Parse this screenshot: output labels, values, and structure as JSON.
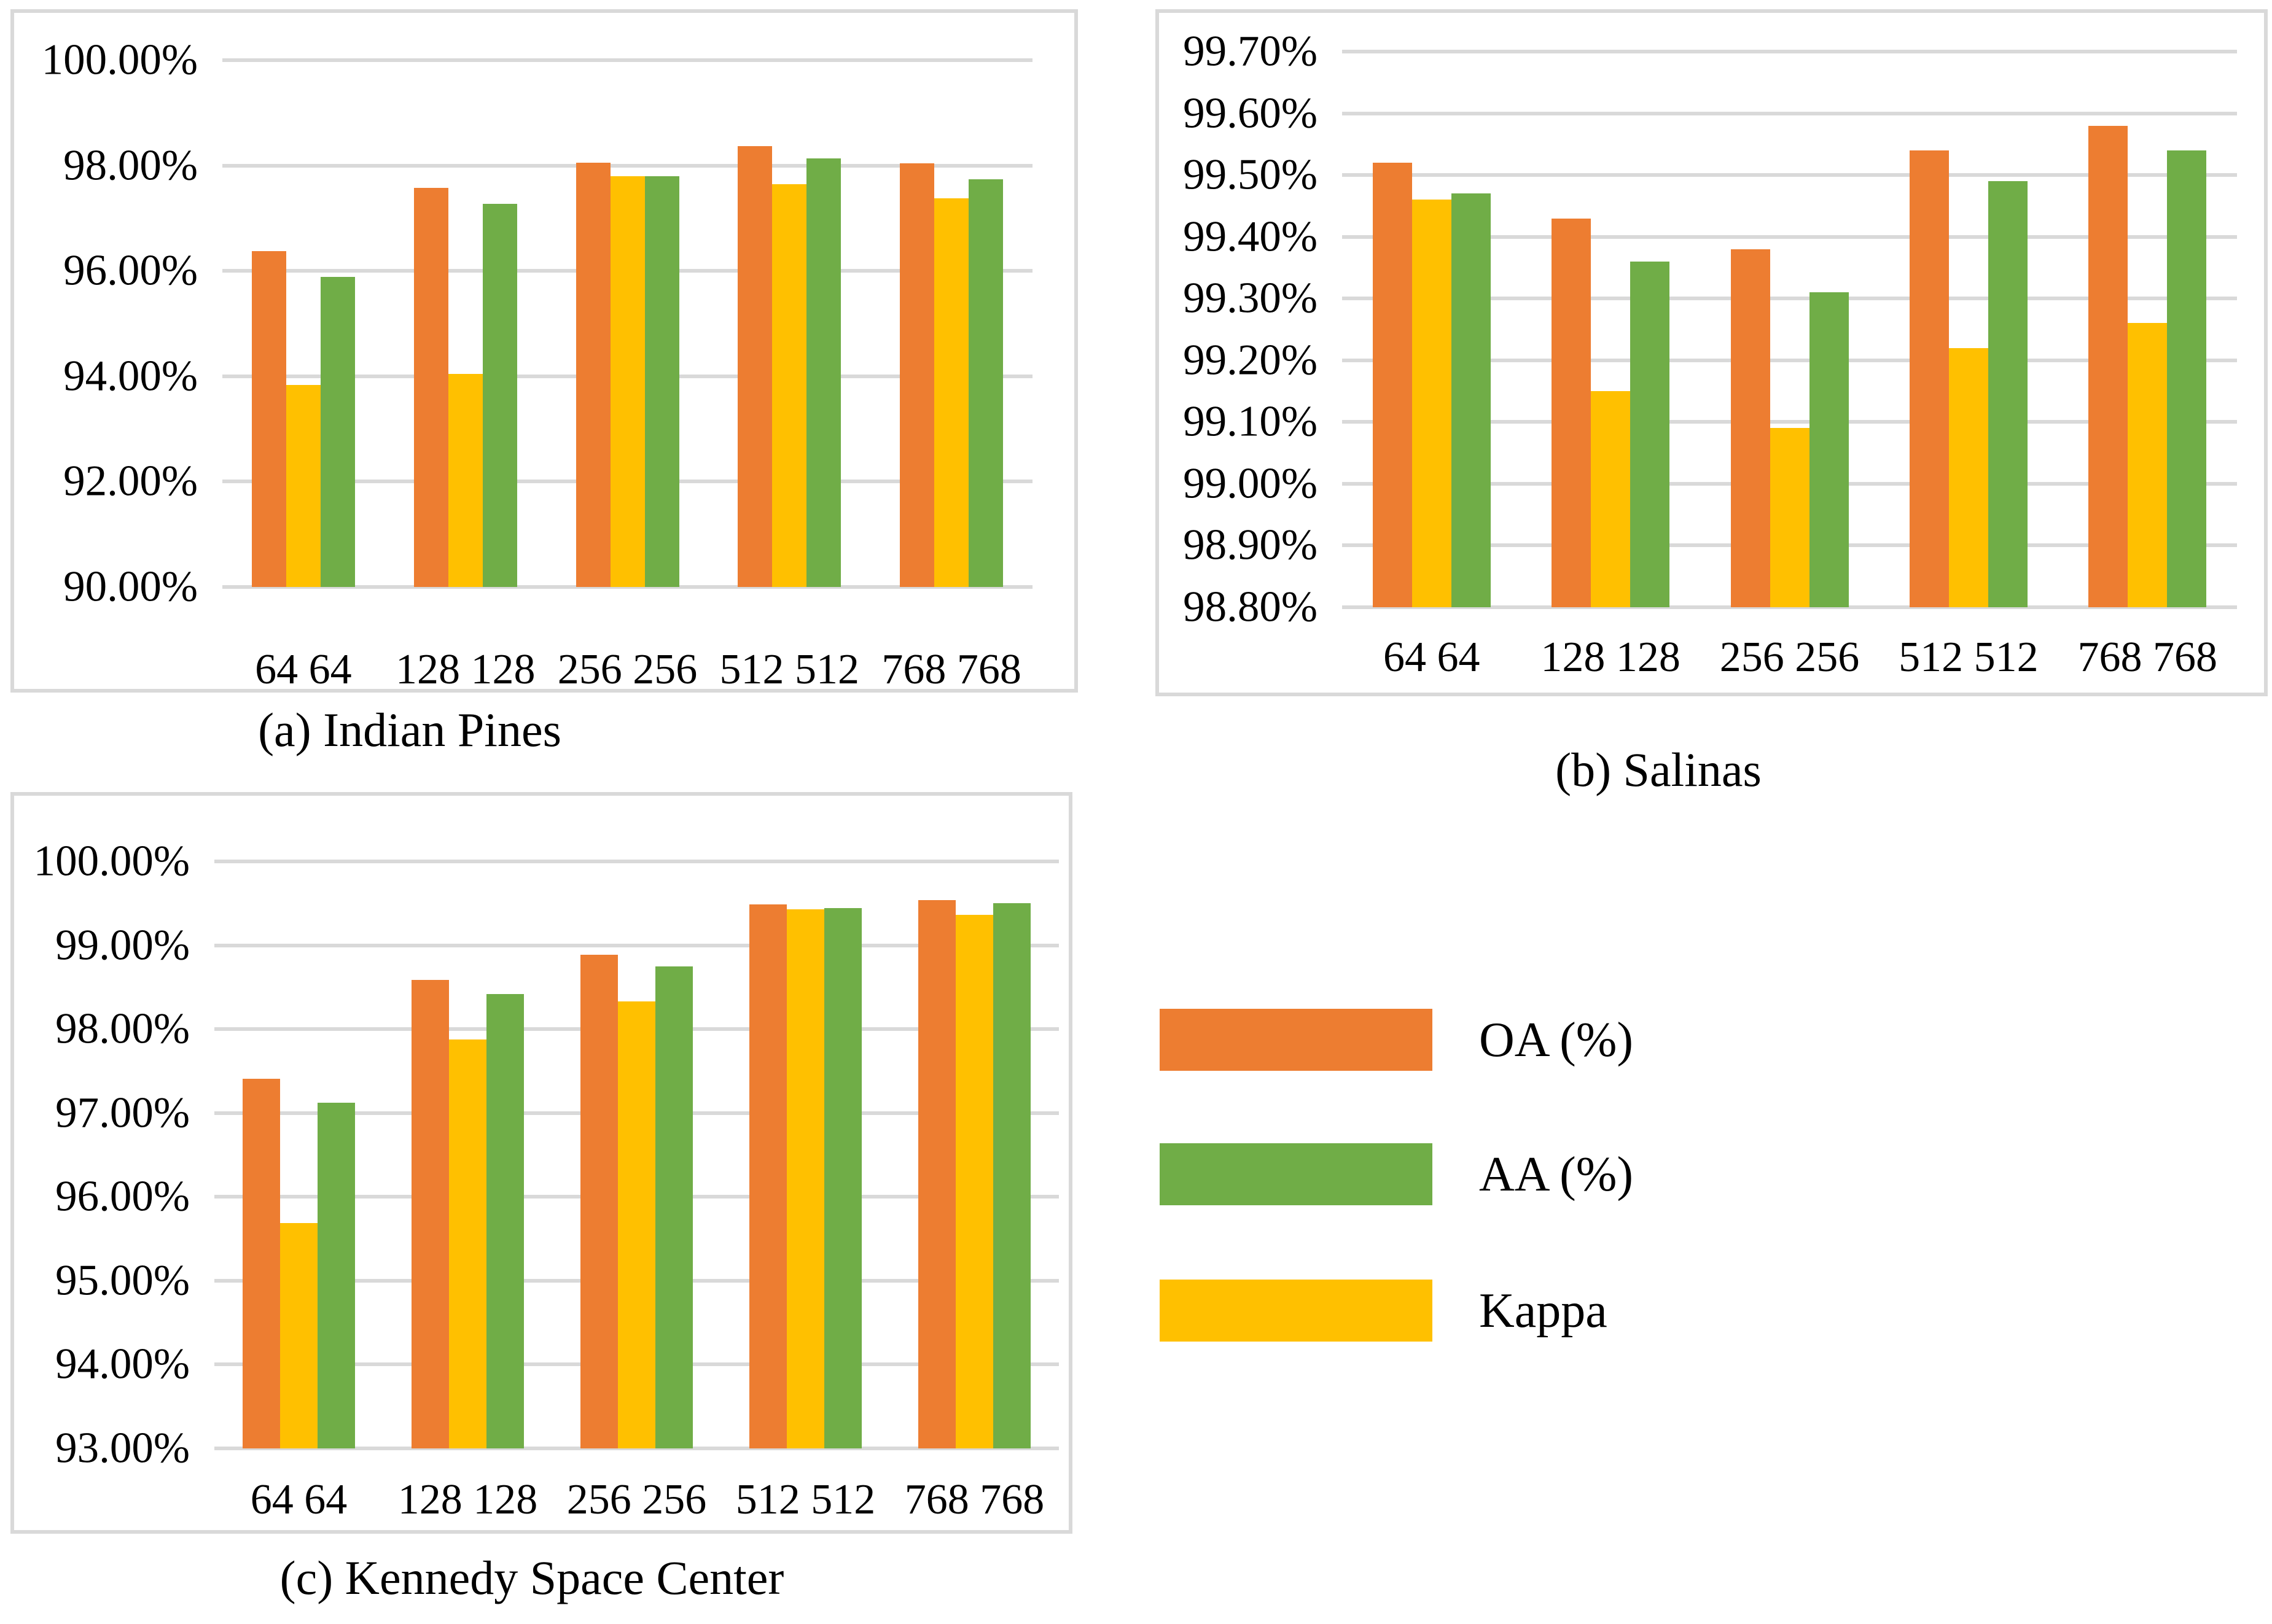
{
  "legend": {
    "items": [
      {
        "label": "OA (%)",
        "color": "#ED7D31"
      },
      {
        "label": "AA (%)",
        "color": "#70AD47"
      },
      {
        "label": "Kappa",
        "color": "#FFC000"
      }
    ]
  },
  "colors": {
    "oa_orange": "#ED7D31",
    "aa_green": "#70AD47",
    "kappa_yellow": "#FFC000",
    "gridline_gray": "#D9D9D9",
    "border_gray": "#D9D9D9",
    "text_black": "#000000",
    "background": "#ffffff"
  },
  "chart_data": [
    {
      "id": "indian-pines",
      "type": "bar",
      "caption": "(a) Indian Pines",
      "categories": [
        "64 64",
        "128 128",
        "256 256",
        "512 512",
        "768 768"
      ],
      "series": [
        {
          "name": "OA (%)",
          "color": "#ED7D31",
          "values": [
            96.38,
            97.58,
            98.05,
            98.37,
            98.04
          ]
        },
        {
          "name": "Kappa",
          "color": "#FFC000",
          "values": [
            93.84,
            94.05,
            97.8,
            97.64,
            97.38
          ]
        },
        {
          "name": "AA (%)",
          "color": "#70AD47",
          "values": [
            95.88,
            97.27,
            97.8,
            98.14,
            97.74
          ]
        }
      ],
      "ylim": [
        90,
        100
      ],
      "grid": true,
      "legend_position": "external-right",
      "yticks": [
        {
          "value": 100,
          "label": "100.00%"
        },
        {
          "value": 98,
          "label": "98.00%"
        },
        {
          "value": 96,
          "label": "96.00%"
        },
        {
          "value": 94,
          "label": "94.00%"
        },
        {
          "value": 92,
          "label": "92.00%"
        },
        {
          "value": 90,
          "label": "90.00%"
        }
      ]
    },
    {
      "id": "salinas",
      "type": "bar",
      "caption": "(b) Salinas",
      "categories": [
        "64 64",
        "128 128",
        "256 256",
        "512 512",
        "768 768"
      ],
      "series": [
        {
          "name": "OA (%)",
          "color": "#ED7D31",
          "values": [
            99.52,
            99.43,
            99.38,
            99.54,
            99.58
          ]
        },
        {
          "name": "Kappa",
          "color": "#FFC000",
          "values": [
            99.46,
            99.15,
            99.09,
            99.22,
            99.26
          ]
        },
        {
          "name": "AA (%)",
          "color": "#70AD47",
          "values": [
            99.47,
            99.36,
            99.31,
            99.49,
            99.54
          ]
        }
      ],
      "ylim": [
        98.8,
        99.7
      ],
      "grid": true,
      "legend_position": "external-right",
      "yticks": [
        {
          "value": 99.7,
          "label": "99.70%"
        },
        {
          "value": 99.6,
          "label": "99.60%"
        },
        {
          "value": 99.5,
          "label": "99.50%"
        },
        {
          "value": 99.4,
          "label": "99.40%"
        },
        {
          "value": 99.3,
          "label": "99.30%"
        },
        {
          "value": 99.2,
          "label": "99.20%"
        },
        {
          "value": 99.1,
          "label": "99.10%"
        },
        {
          "value": 99.0,
          "label": "99.00%"
        },
        {
          "value": 98.9,
          "label": "98.90%"
        },
        {
          "value": 98.8,
          "label": "98.80%"
        }
      ]
    },
    {
      "id": "kennedy-space-center",
      "type": "bar",
      "caption": "(c) Kennedy Space Center",
      "categories": [
        "64 64",
        "128 128",
        "256 256",
        "512 512",
        "768 768"
      ],
      "series": [
        {
          "name": "OA (%)",
          "color": "#ED7D31",
          "values": [
            97.41,
            98.59,
            98.89,
            99.49,
            99.54
          ]
        },
        {
          "name": "Kappa",
          "color": "#FFC000",
          "values": [
            95.69,
            97.88,
            98.33,
            99.43,
            99.36
          ]
        },
        {
          "name": "AA (%)",
          "color": "#70AD47",
          "values": [
            97.12,
            98.42,
            98.75,
            99.44,
            99.5
          ]
        }
      ],
      "ylim": [
        93,
        100
      ],
      "grid": true,
      "legend_position": "external-right",
      "yticks": [
        {
          "value": 100,
          "label": "100.00%"
        },
        {
          "value": 99,
          "label": "99.00%"
        },
        {
          "value": 98,
          "label": "98.00%"
        },
        {
          "value": 97,
          "label": "97.00%"
        },
        {
          "value": 96,
          "label": "96.00%"
        },
        {
          "value": 95,
          "label": "95.00%"
        },
        {
          "value": 94,
          "label": "94.00%"
        },
        {
          "value": 93,
          "label": "93.00%"
        }
      ]
    }
  ]
}
